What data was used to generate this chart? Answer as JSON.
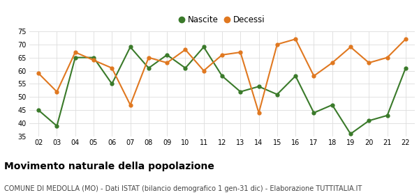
{
  "years": [
    "02",
    "03",
    "04",
    "05",
    "06",
    "07",
    "08",
    "09",
    "10",
    "11",
    "12",
    "13",
    "14",
    "15",
    "16",
    "17",
    "18",
    "19",
    "20",
    "21",
    "22"
  ],
  "nascite": [
    45,
    39,
    65,
    65,
    55,
    69,
    61,
    66,
    61,
    69,
    58,
    52,
    54,
    51,
    58,
    44,
    47,
    36,
    41,
    43,
    61
  ],
  "decessi": [
    59,
    52,
    67,
    64,
    61,
    47,
    65,
    63,
    68,
    60,
    66,
    67,
    44,
    70,
    72,
    58,
    63,
    69,
    63,
    65,
    72
  ],
  "nascite_color": "#3a7a2a",
  "decessi_color": "#e07820",
  "background_color": "#ffffff",
  "grid_color": "#dddddd",
  "ylim": [
    35,
    75
  ],
  "yticks": [
    35,
    40,
    45,
    50,
    55,
    60,
    65,
    70,
    75
  ],
  "title": "Movimento naturale della popolazione",
  "subtitle": "COMUNE DI MEDOLLA (MO) - Dati ISTAT (bilancio demografico 1 gen-31 dic) - Elaborazione TUTTITALIA.IT",
  "title_fontsize": 10,
  "subtitle_fontsize": 7,
  "marker": "o",
  "markersize": 3.5,
  "linewidth": 1.5
}
